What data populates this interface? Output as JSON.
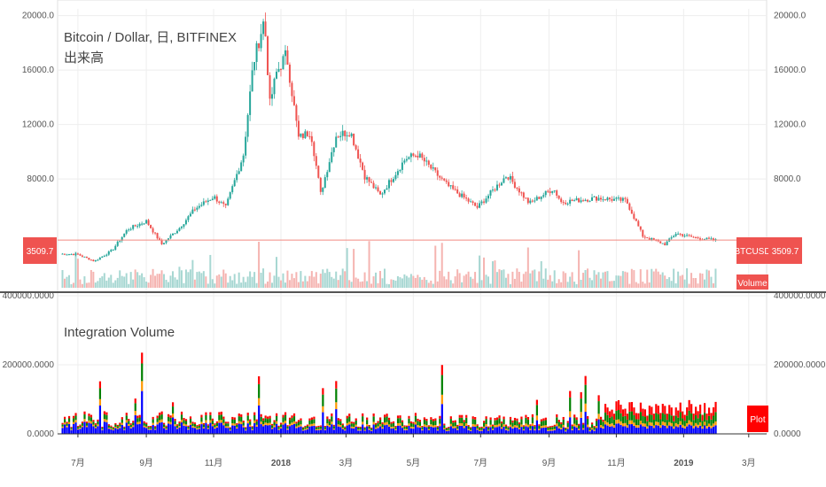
{
  "colors": {
    "up": "#26a69a",
    "down": "#ef5350",
    "price_line": "#f28b82",
    "badge": "#ef5350",
    "vol_up": "#a7d7d2",
    "vol_down": "#f5b4b1",
    "layer_blue": "#0000ff",
    "layer_orange": "#ff9800",
    "layer_green": "#008000",
    "layer_red": "#ff0000",
    "grid": "#eeeeee",
    "divider": "#555555"
  },
  "chart_data": [
    {
      "type": "candlestick",
      "title": "Bitcoin / Dollar, 日, BITFINEX",
      "subtitle": "出来高",
      "y_ticks": [
        "20000.0",
        "16000.0",
        "12000.0",
        "8000.0"
      ],
      "y_tick_values": [
        20000,
        16000,
        12000,
        8000
      ],
      "ylim": [
        0,
        20500
      ],
      "last_price_label": "3509.7",
      "symbol_label": "BTCUSD",
      "volume_label": "Volume",
      "price_path": [
        [
          "2017-06-15",
          2500
        ],
        [
          "2017-07-01",
          2450
        ],
        [
          "2017-07-16",
          1950
        ],
        [
          "2017-08-01",
          2750
        ],
        [
          "2017-08-15",
          4300
        ],
        [
          "2017-09-01",
          4900
        ],
        [
          "2017-09-15",
          3200
        ],
        [
          "2017-10-01",
          4400
        ],
        [
          "2017-10-15",
          5800
        ],
        [
          "2017-11-01",
          6700
        ],
        [
          "2017-11-12",
          5900
        ],
        [
          "2017-11-28",
          9800
        ],
        [
          "2017-12-07",
          16500
        ],
        [
          "2017-12-17",
          19800
        ],
        [
          "2017-12-22",
          13500
        ],
        [
          "2017-12-28",
          15800
        ],
        [
          "2018-01-06",
          17200
        ],
        [
          "2018-01-17",
          11000
        ],
        [
          "2018-01-28",
          11500
        ],
        [
          "2018-02-06",
          6900
        ],
        [
          "2018-02-20",
          11200
        ],
        [
          "2018-03-05",
          11500
        ],
        [
          "2018-03-18",
          8200
        ],
        [
          "2018-04-01",
          6800
        ],
        [
          "2018-04-24",
          9500
        ],
        [
          "2018-05-05",
          9800
        ],
        [
          "2018-06-01",
          7500
        ],
        [
          "2018-06-28",
          5900
        ],
        [
          "2018-07-25",
          8300
        ],
        [
          "2018-08-14",
          6200
        ],
        [
          "2018-09-05",
          7300
        ],
        [
          "2018-09-12",
          6300
        ],
        [
          "2018-10-15",
          6600
        ],
        [
          "2018-11-10",
          6400
        ],
        [
          "2018-11-25",
          3800
        ],
        [
          "2018-12-15",
          3200
        ],
        [
          "2018-12-25",
          4000
        ],
        [
          "2019-01-10",
          3700
        ],
        [
          "2019-01-30",
          3500
        ]
      ]
    },
    {
      "type": "area",
      "title": "Integration Volume",
      "y_ticks": [
        "400000.0000",
        "200000.0000",
        "0.0000"
      ],
      "y_tick_values": [
        400000,
        200000,
        0
      ],
      "ylim": [
        0,
        400000
      ],
      "plot_label": "Plot",
      "series_stack": [
        "blue",
        "orange",
        "green",
        "red"
      ]
    }
  ],
  "x_axis": {
    "ticks": [
      {
        "label": "7月",
        "date": "2017-07-01",
        "bold": false
      },
      {
        "label": "9月",
        "date": "2017-09-01",
        "bold": false
      },
      {
        "label": "11月",
        "date": "2017-11-01",
        "bold": false
      },
      {
        "label": "2018",
        "date": "2018-01-01",
        "bold": true
      },
      {
        "label": "3月",
        "date": "2018-03-01",
        "bold": false
      },
      {
        "label": "5月",
        "date": "2018-05-01",
        "bold": false
      },
      {
        "label": "7月",
        "date": "2018-07-01",
        "bold": false
      },
      {
        "label": "9月",
        "date": "2018-09-01",
        "bold": false
      },
      {
        "label": "11月",
        "date": "2018-11-01",
        "bold": false
      },
      {
        "label": "2019",
        "date": "2019-01-01",
        "bold": true
      },
      {
        "label": "3月",
        "date": "2019-03-01",
        "bold": false
      }
    ]
  }
}
